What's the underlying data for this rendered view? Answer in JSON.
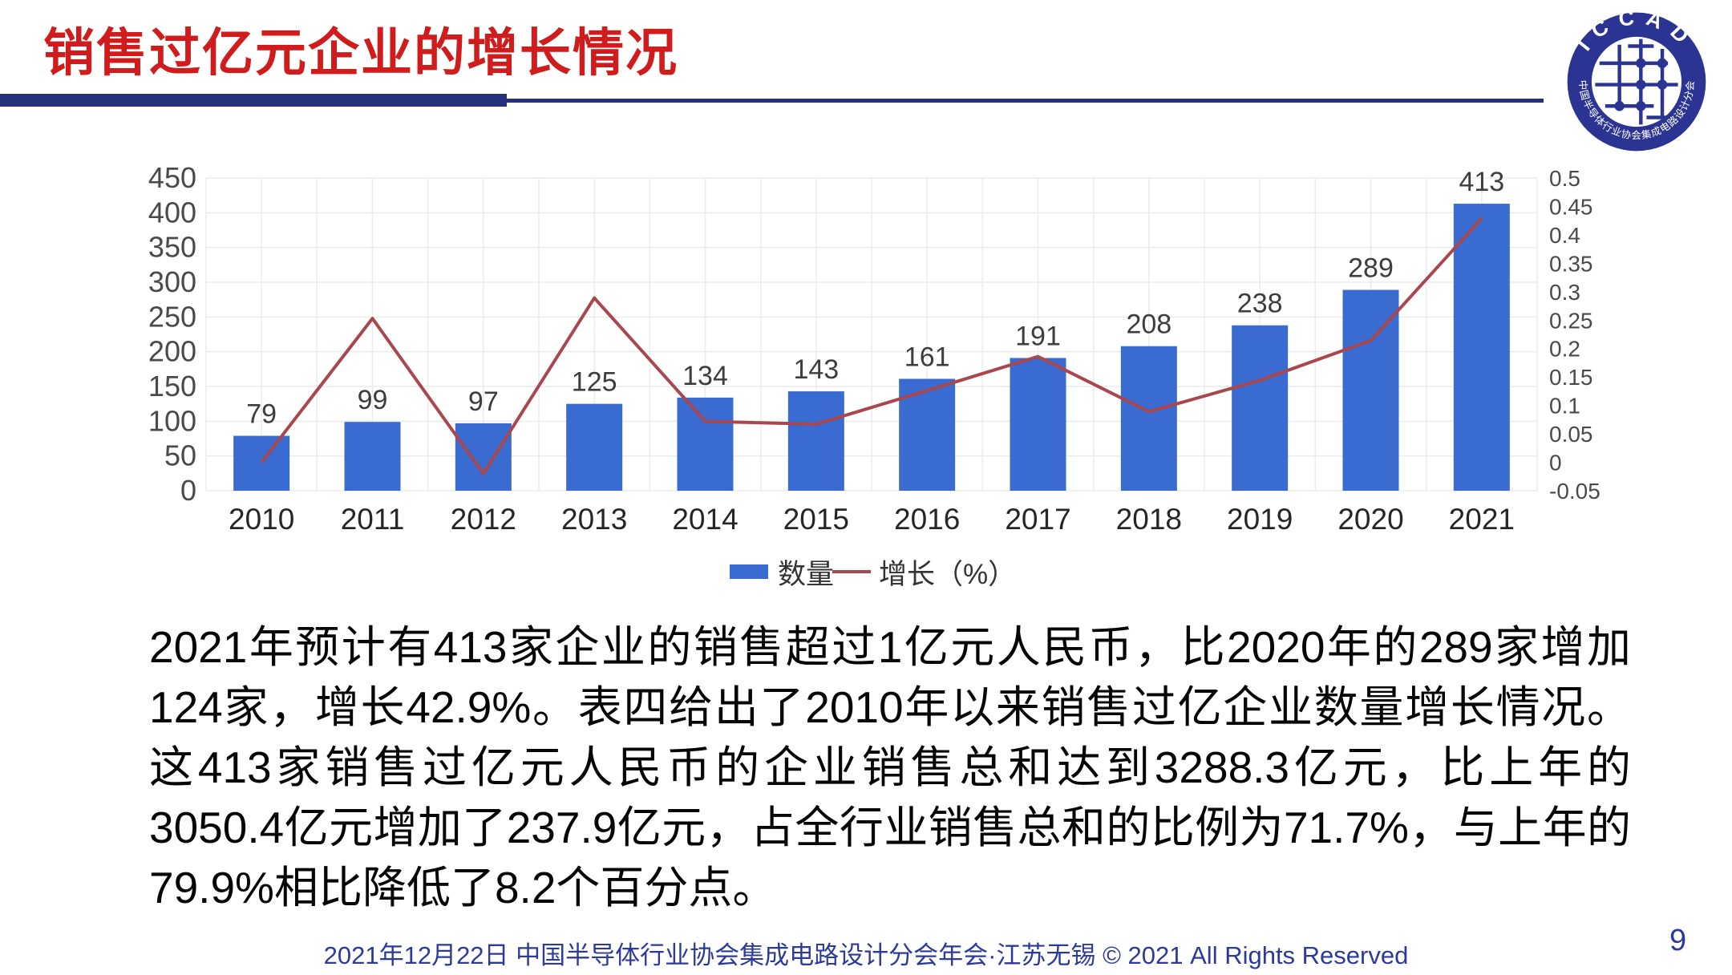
{
  "slide": {
    "title": "销售过亿元企业的增长情况",
    "footer": "2021年12月22日 中国半导体行业协会集成电路设计分会年会·江苏无锡 © 2021 All Rights Reserved",
    "page_number": "9",
    "accent_colors": {
      "title_red": "#D01C1C",
      "rule_navy": "#25307F",
      "footer_navy": "#2C3A99"
    },
    "logo": {
      "ring_text_top": "ICCAD",
      "ring_text_bottom": "中国半导体行业协会集成电路设计分会",
      "navy": "#2B3492"
    }
  },
  "body_text": {
    "paragraph": "2021年预计有413家企业的销售超过1亿元人民币，比2020年的289家增加124家，增长42.9%。表四给出了2010年以来销售过亿企业数量增长情况。这413家销售过亿元人民币的企业销售总和达到3288.3亿元，比上年的3050.4亿元增加了237.9亿元，占全行业销售总和的比例为71.7%，与上年的79.9%相比降低了8.2个百分点。"
  },
  "chart_data": {
    "type": "bar",
    "subtype": "combo bar+line, dual axis",
    "categories": [
      "2010",
      "2011",
      "2012",
      "2013",
      "2014",
      "2015",
      "2016",
      "2017",
      "2018",
      "2019",
      "2020",
      "2021"
    ],
    "series": [
      {
        "name": "数量",
        "chart": "bar",
        "axis": "left",
        "color": "#3A6BD0",
        "values": [
          79,
          99,
          97,
          125,
          134,
          143,
          161,
          191,
          208,
          238,
          289,
          413
        ],
        "data_labels": [
          "79",
          "99",
          "97",
          "125",
          "134",
          "143",
          "161",
          "191",
          "208",
          "238",
          "289",
          "413"
        ]
      },
      {
        "name": "增长（%）",
        "chart": "line",
        "axis": "right",
        "color": "#A9474F",
        "values": [
          0.0,
          0.253,
          -0.02,
          0.289,
          0.072,
          0.067,
          0.126,
          0.186,
          0.089,
          0.144,
          0.214,
          0.429
        ]
      }
    ],
    "left_axis": {
      "min": 0,
      "max": 450,
      "step": 50,
      "tick_labels_top_to_bottom": [
        "450",
        "400",
        "350",
        "300",
        "250",
        "200",
        "150",
        "100",
        "50",
        "0"
      ]
    },
    "right_axis": {
      "min": -0.05,
      "max": 0.5,
      "step": 0.05,
      "tick_labels_top_to_bottom": [
        "0.5",
        "0.45",
        "0.4",
        "0.35",
        "0.3",
        "0.25",
        "0.2",
        "0.15",
        "0.1",
        "0.05",
        "0",
        "-0.05"
      ]
    },
    "legend": {
      "position": "bottom-center",
      "items": [
        "数量",
        "增长（%）"
      ]
    },
    "grid": {
      "horizontal": true,
      "vertical": true,
      "color": "#EBEBEB"
    },
    "label_colors": {
      "ticks": "#4A4A4A",
      "data_labels": "#3D3D3D",
      "category": "#262626"
    }
  }
}
